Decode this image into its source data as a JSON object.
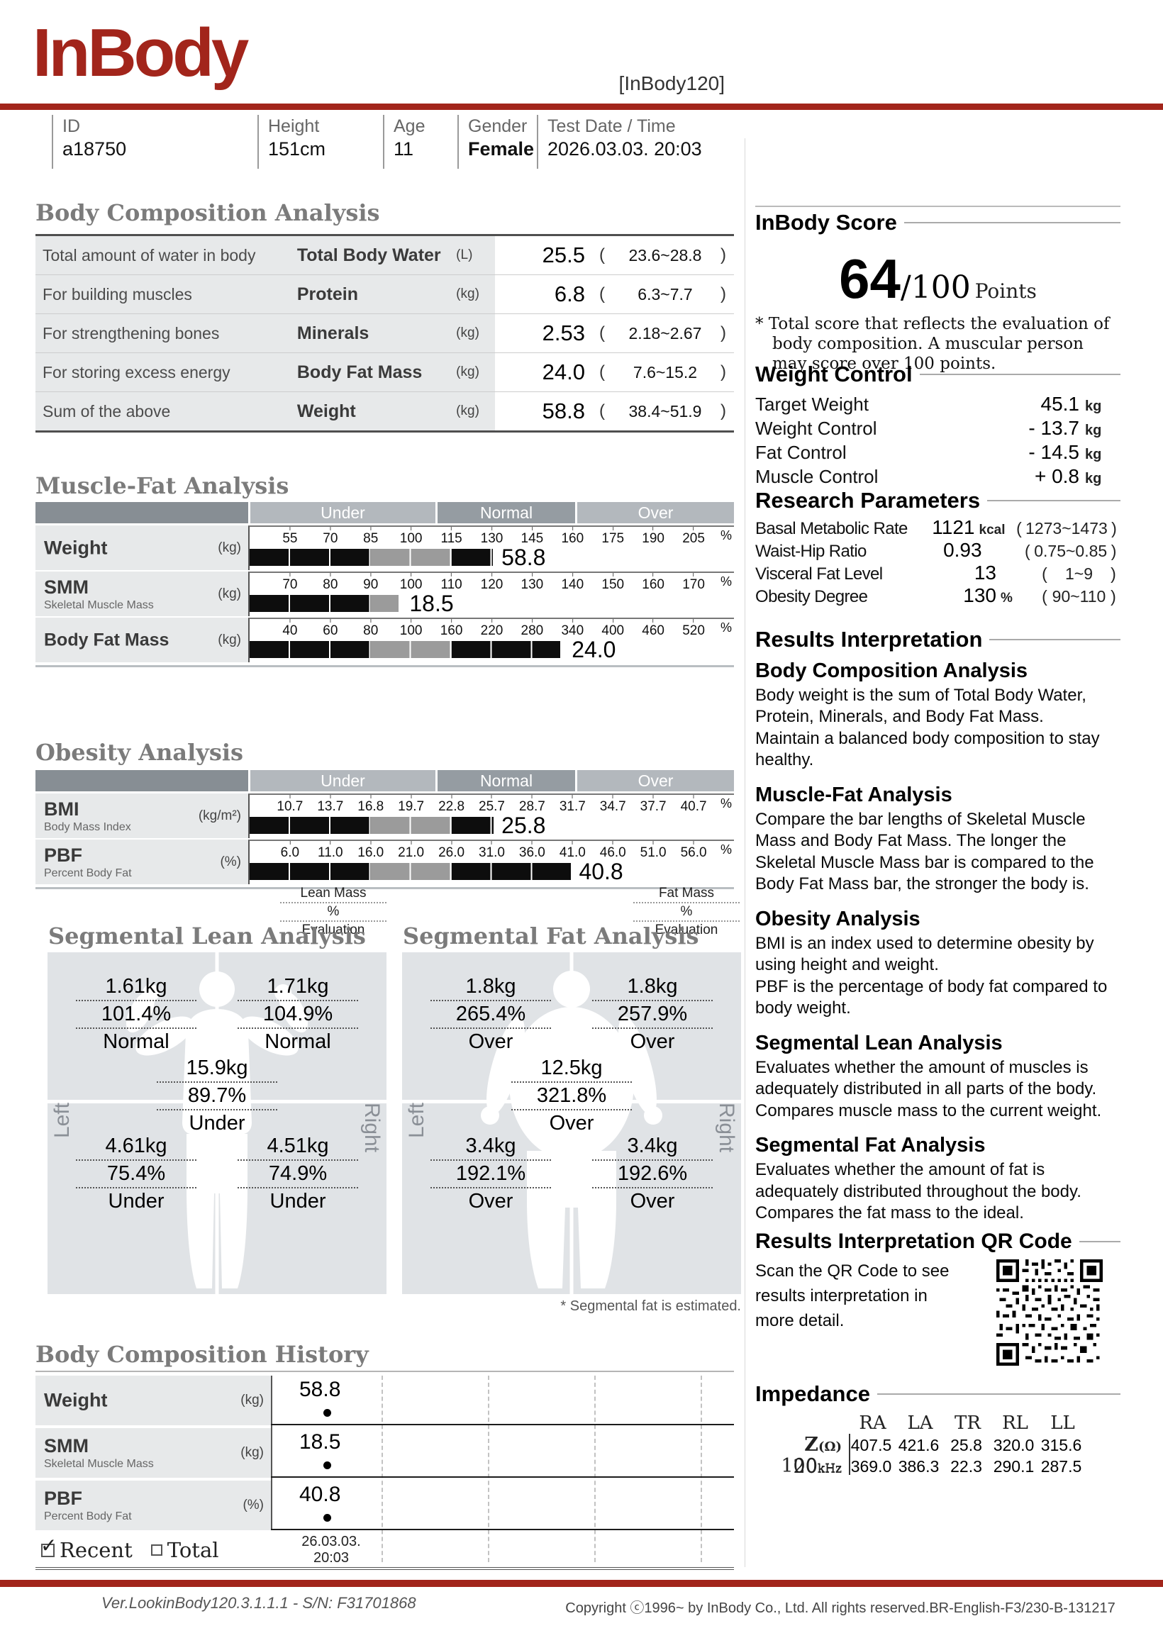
{
  "header": {
    "logo": "InBody",
    "model": "[InBody120]",
    "fields": [
      {
        "label": "ID",
        "value": "a18750"
      },
      {
        "label": "Height",
        "value": "151cm"
      },
      {
        "label": "Age",
        "value": "11"
      },
      {
        "label": "Gender",
        "value": "Female"
      },
      {
        "label": "Test Date / Time",
        "value": "2026.03.03. 20:03"
      }
    ]
  },
  "glyphs": {
    "open": "(",
    "close": ")",
    "check": "✓"
  },
  "colors": {
    "brand_red": "#A2251B",
    "title_gray": "#7b7b7b",
    "band_dark": "#878e94",
    "band_mid": "#959ca2",
    "band_light": "#b3b8bd"
  },
  "body_composition": {
    "title": "Body Composition Analysis",
    "rows": [
      {
        "desc": "Total amount of water in body",
        "label": "Total Body Water",
        "unit": "(L)",
        "value": "25.5",
        "range": "23.6~28.8"
      },
      {
        "desc": "For building muscles",
        "label": "Protein",
        "unit": "(kg)",
        "value": "6.8",
        "range": "6.3~7.7"
      },
      {
        "desc": "For strengthening bones",
        "label": "Minerals",
        "unit": "(kg)",
        "value": "2.53",
        "range": "2.18~2.67"
      },
      {
        "desc": "For storing excess energy",
        "label": "Body Fat Mass",
        "unit": "(kg)",
        "value": "24.0",
        "range": "7.6~15.2"
      },
      {
        "desc": "Sum of the above",
        "label": "Weight",
        "unit": "(kg)",
        "value": "58.8",
        "range": "38.4~51.9"
      }
    ]
  },
  "muscle_fat": {
    "title": "Muscle-Fat Analysis",
    "bands": [
      "Under",
      "Normal",
      "Over"
    ],
    "pct": "%",
    "rows": [
      {
        "label": "Weight",
        "sub": "",
        "unit": "(kg)",
        "value": "58.8",
        "ticks": [
          "55",
          "70",
          "85",
          "100",
          "115",
          "130",
          "145",
          "160",
          "175",
          "190",
          "205"
        ],
        "bar": {
          "black1": 25,
          "gray": 16.7,
          "black2": 8.5,
          "value_left": 52
        }
      },
      {
        "label": "SMM",
        "sub": "Skeletal Muscle Mass",
        "unit": "(kg)",
        "value": "18.5",
        "ticks": [
          "70",
          "80",
          "90",
          "100",
          "110",
          "120",
          "130",
          "140",
          "150",
          "160",
          "170"
        ],
        "bar": {
          "black1": 25,
          "gray": 5.8,
          "black2": 0,
          "value_left": 33
        }
      },
      {
        "label": "Body Fat Mass",
        "sub": "",
        "unit": "(kg)",
        "value": "24.0",
        "ticks": [
          "40",
          "60",
          "80",
          "100",
          "160",
          "220",
          "280",
          "340",
          "400",
          "460",
          "520"
        ],
        "bar": {
          "black1": 25,
          "gray": 16.7,
          "black2": 22.5,
          "value_left": 66.5
        }
      }
    ]
  },
  "obesity": {
    "title": "Obesity Analysis",
    "bands": [
      "Under",
      "Normal",
      "Over"
    ],
    "pct": "%",
    "rows": [
      {
        "label": "BMI",
        "sub": "Body Mass Index",
        "unit": "(kg/m²)",
        "value": "25.8",
        "ticks": [
          "10.7",
          "13.7",
          "16.8",
          "19.7",
          "22.8",
          "25.7",
          "28.7",
          "31.7",
          "34.7",
          "37.7",
          "40.7"
        ],
        "bar": {
          "black1": 25,
          "gray": 16.7,
          "black2": 8.6,
          "value_left": 52
        }
      },
      {
        "label": "PBF",
        "sub": "Percent Body Fat",
        "unit": "(%)",
        "value": "40.8",
        "ticks": [
          "6.0",
          "11.0",
          "16.0",
          "21.0",
          "26.0",
          "31.0",
          "36.0",
          "41.0",
          "46.0",
          "51.0",
          "56.0"
        ],
        "bar": {
          "black1": 25,
          "gray": 16.7,
          "black2": 24.6,
          "value_left": 68
        }
      }
    ]
  },
  "segmental_lean": {
    "title": "Segmental Lean Analysis",
    "legend": [
      "Lean Mass",
      "%",
      "Evaluation"
    ],
    "side_left": "Left",
    "side_right": "Right",
    "left_arm": {
      "mass": "1.61kg",
      "pct": "101.4%",
      "eval": "Normal"
    },
    "right_arm": {
      "mass": "1.71kg",
      "pct": "104.9%",
      "eval": "Normal"
    },
    "trunk": {
      "mass": "15.9kg",
      "pct": "89.7%",
      "eval": "Under"
    },
    "left_leg": {
      "mass": "4.61kg",
      "pct": "75.4%",
      "eval": "Under"
    },
    "right_leg": {
      "mass": "4.51kg",
      "pct": "74.9%",
      "eval": "Under"
    }
  },
  "segmental_fat": {
    "title": "Segmental Fat Analysis",
    "legend": [
      "Fat Mass",
      "%",
      "Evaluation"
    ],
    "side_left": "Left",
    "side_right": "Right",
    "left_arm": {
      "mass": "1.8kg",
      "pct": "265.4%",
      "eval": "Over"
    },
    "right_arm": {
      "mass": "1.8kg",
      "pct": "257.9%",
      "eval": "Over"
    },
    "trunk": {
      "mass": "12.5kg",
      "pct": "321.8%",
      "eval": "Over"
    },
    "left_leg": {
      "mass": "3.4kg",
      "pct": "192.1%",
      "eval": "Over"
    },
    "right_leg": {
      "mass": "3.4kg",
      "pct": "192.6%",
      "eval": "Over"
    },
    "note": "* Segmental fat is estimated."
  },
  "history": {
    "title": "Body Composition History",
    "rows": [
      {
        "label": "Weight",
        "sub": "",
        "unit": "(kg)",
        "value": "58.8"
      },
      {
        "label": "SMM",
        "sub": "Skeletal Muscle Mass",
        "unit": "(kg)",
        "value": "18.5"
      },
      {
        "label": "PBF",
        "sub": "Percent Body Fat",
        "unit": "(%)",
        "value": "40.8"
      }
    ],
    "date_line1": "26.03.03.",
    "date_line2": "20:03",
    "recent_label": "Recent",
    "total_label": "Total"
  },
  "score": {
    "title": "InBody Score",
    "value": "64",
    "denom": "/100",
    "points": "Points",
    "note": "* Total score that reflects the evaluation of body composition. A muscular person may score over 100 points."
  },
  "weight_control": {
    "title": "Weight Control",
    "rows": [
      {
        "label": "Target Weight",
        "value": "45.1",
        "unit": "kg"
      },
      {
        "label": "Weight Control",
        "value": "- 13.7",
        "unit": "kg"
      },
      {
        "label": "Fat Control",
        "value": "- 14.5",
        "unit": "kg"
      },
      {
        "label": "Muscle Control",
        "value": "+ 0.8",
        "unit": "kg"
      }
    ]
  },
  "research": {
    "title": "Research Parameters",
    "rows": [
      {
        "label": "Basal Metabolic Rate",
        "value": "1121",
        "unit": "kcal",
        "range": "1273~1473"
      },
      {
        "label": "Waist-Hip Ratio",
        "value": "0.93",
        "unit": "",
        "range": "0.75~0.85"
      },
      {
        "label": "Visceral Fat Level",
        "value": "13",
        "unit": "",
        "range": "1~9"
      },
      {
        "label": "Obesity Degree",
        "value": "130",
        "unit": "%",
        "range": "90~110"
      }
    ]
  },
  "interpretation": {
    "title": "Results Interpretation",
    "sections": [
      {
        "heading": "Body Composition Analysis",
        "text": "Body weight is the sum of Total Body Water, Protein, Minerals, and Body Fat Mass.\nMaintain a balanced body composition to stay healthy."
      },
      {
        "heading": "Muscle-Fat Analysis",
        "text": "Compare the bar lengths of Skeletal Muscle Mass and Body Fat Mass. The longer the Skeletal Muscle Mass bar is compared to the Body Fat Mass bar, the stronger the body is."
      },
      {
        "heading": "Obesity Analysis",
        "text": "BMI is an index used to determine obesity by using height and weight.\nPBF is the percentage of body fat compared to body weight."
      },
      {
        "heading": "Segmental Lean Analysis",
        "text": "Evaluates whether the amount of muscles is adequately distributed in all parts of the body.\nCompares muscle mass to the current weight."
      },
      {
        "heading": "Segmental Fat Analysis",
        "text": "Evaluates whether the amount of fat is adequately distributed throughout the body. Compares the fat mass to the ideal."
      }
    ]
  },
  "qr": {
    "title": "Results Interpretation QR Code",
    "text": "Scan the QR Code to see\nresults interpretation in\nmore detail."
  },
  "impedance": {
    "title": "Impedance",
    "z": "Z",
    "z_unit": "(Ω)",
    "freq1": "20",
    "freq2": "100",
    "khz": "kHz",
    "cols": [
      "RA",
      "LA",
      "TR",
      "RL",
      "LL"
    ],
    "row1": [
      "407.5",
      "421.6",
      "25.8",
      "320.0",
      "315.6"
    ],
    "row2": [
      "369.0",
      "386.3",
      "22.3",
      "290.1",
      "287.5"
    ]
  },
  "footer": {
    "version": "Ver.LookinBody120.3.1.1.1 - S/N: F31701868",
    "copyright": "Copyright ⓒ1996~ by InBody Co., Ltd. All rights reserved.BR-English-F3/230-B-131217"
  }
}
